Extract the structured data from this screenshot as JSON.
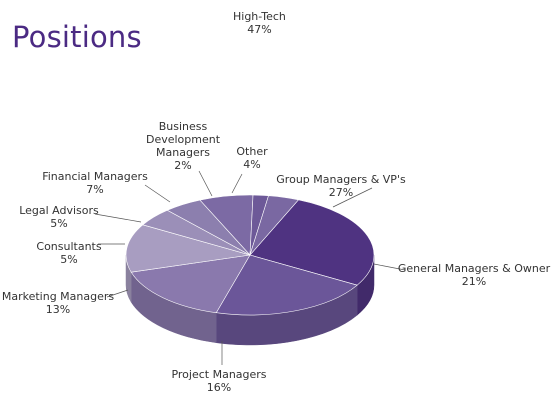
{
  "title": "Positions",
  "chart_data": {
    "type": "pie",
    "title": "Positions",
    "style": "3d",
    "slices": [
      {
        "label": "Group Managers & VP's",
        "value": 27,
        "display": "27%",
        "color": "#4f3381"
      },
      {
        "label": "General Managers & Owner",
        "value": 21,
        "display": "21%",
        "color": "#6b5699"
      },
      {
        "label": "Project Managers",
        "value": 16,
        "display": "16%",
        "color": "#8a79ad"
      },
      {
        "label": "Marketing Managers",
        "value": 13,
        "display": "13%",
        "color": "#a89dc1"
      },
      {
        "label": "Consultants",
        "value": 5,
        "display": "5%",
        "color": "#9b8fb8"
      },
      {
        "label": "Legal Advisors",
        "value": 5,
        "display": "5%",
        "color": "#8c7fae"
      },
      {
        "label": "Financial Managers",
        "value": 7,
        "display": "7%",
        "color": "#7c6aa4"
      },
      {
        "label": "Business Development Managers",
        "value": 2,
        "display": "2%",
        "color": "#6d5998"
      },
      {
        "label": "Other",
        "value": 4,
        "display": "4%",
        "color": "#7a68a2"
      }
    ],
    "extra_label": {
      "label": "High-Tech",
      "display": "47%"
    },
    "legend": "none"
  }
}
